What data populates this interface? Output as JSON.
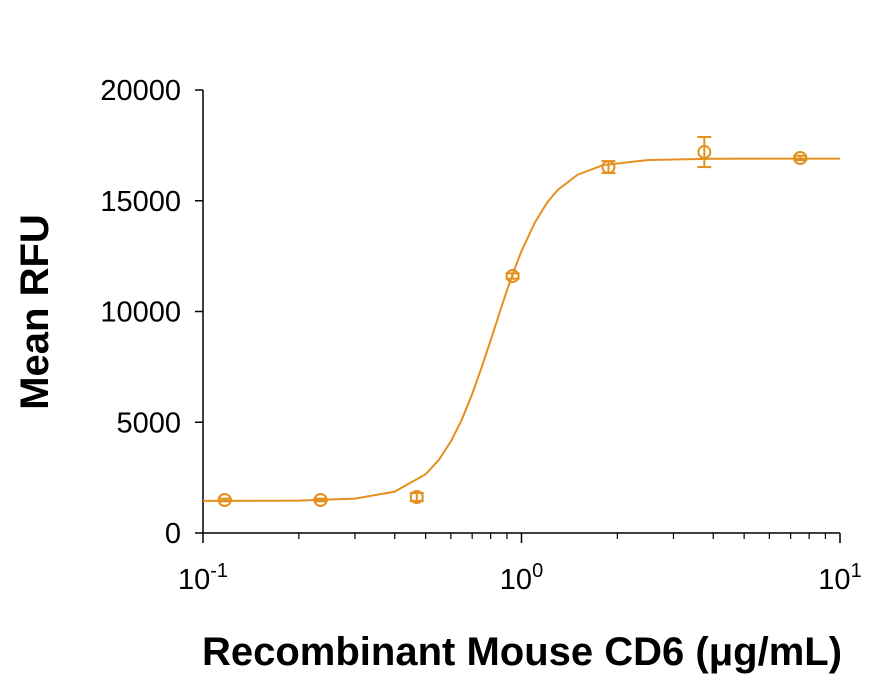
{
  "chart_data": {
    "type": "scatter",
    "xlabel": "Recombinant Mouse CD6 (μg/mL)",
    "ylabel": "Mean RFU",
    "xscale": "log",
    "xlim": [
      0.1,
      10
    ],
    "xticks": [
      {
        "value": 0.1,
        "label": "10",
        "exponent": "-1"
      },
      {
        "value": 1,
        "label": "10",
        "exponent": "0"
      },
      {
        "value": 10,
        "label": "10",
        "exponent": "1"
      }
    ],
    "xminorticks": [
      0.2,
      0.3,
      0.4,
      0.5,
      0.6,
      0.7,
      0.8,
      0.9,
      2,
      3,
      4,
      5,
      6,
      7,
      8,
      9
    ],
    "ylim": [
      0,
      20000
    ],
    "yticks": [
      0,
      5000,
      10000,
      15000,
      20000
    ],
    "color": "#e3901f",
    "x": [
      0.117,
      0.234,
      0.469,
      0.9375,
      1.875,
      3.75,
      7.5
    ],
    "values": [
      1490,
      1490,
      1625,
      11600,
      16520,
      17200,
      16930
    ],
    "errors": [
      60,
      60,
      180,
      120,
      270,
      680,
      100
    ],
    "fit": {
      "x": [
        0.1,
        0.2,
        0.3,
        0.4,
        0.5,
        0.55,
        0.6,
        0.65,
        0.7,
        0.75,
        0.8,
        0.85,
        0.9,
        0.95,
        1,
        1.1,
        1.2,
        1.3,
        1.5,
        1.8,
        2.5,
        4,
        10
      ],
      "values": [
        1450,
        1463,
        1551,
        1867,
        2652,
        3299,
        4132,
        5128,
        6270,
        7491,
        8696,
        9870,
        10952,
        11894,
        12729,
        13995,
        14892,
        15495,
        16174,
        16606,
        16841,
        16899,
        16900
      ]
    }
  }
}
